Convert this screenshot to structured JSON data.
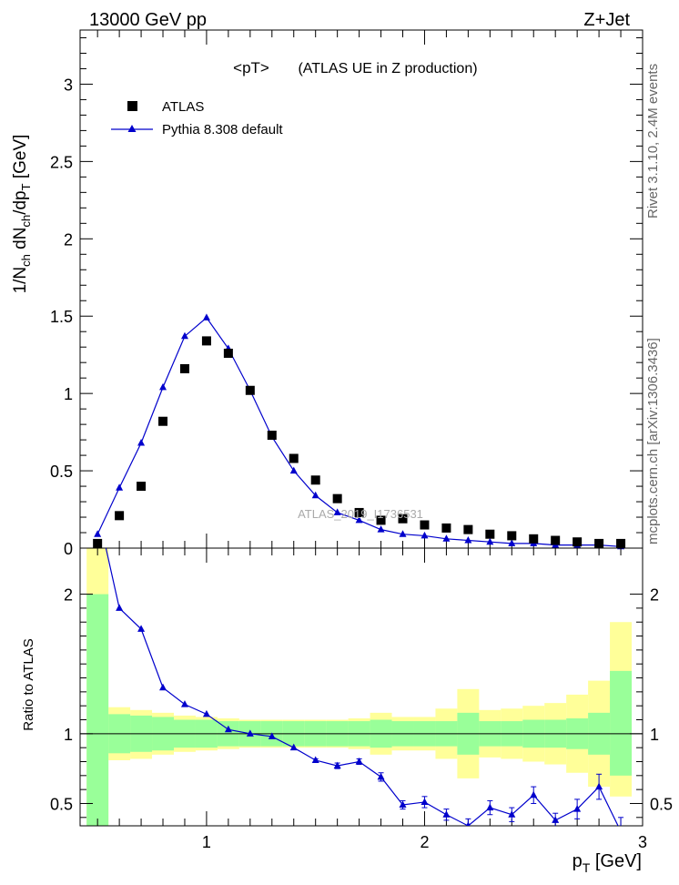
{
  "header": {
    "left": "13000 GeV pp",
    "right": "Z+Jet"
  },
  "side_labels": {
    "rivet": "Rivet 3.1.10, 2.4M events",
    "mcplots": "mcplots.cern.ch [arXiv:1306.3436]"
  },
  "watermark": "ATLAS_2019_I1736531",
  "colors": {
    "data": "#000000",
    "mc": "#0000cc",
    "band_inner": "#99ff99",
    "band_outer": "#ffff99"
  },
  "chart_data": [
    {
      "type": "scatter",
      "title": "<pT>",
      "subtitle": "(ATLAS UE in Z production)",
      "ylabel": "1/N_ch dN_ch/dp_T [GeV]",
      "xlim": [
        0.42,
        3.0
      ],
      "ylim": [
        0,
        3.35
      ],
      "yticks": [
        0,
        0.5,
        1,
        1.5,
        2,
        2.5,
        3
      ],
      "ytick_labels": [
        "0",
        "0.5",
        "1",
        "1.5",
        "2",
        "2.5",
        "3"
      ],
      "legend_position": "top-left",
      "series": [
        {
          "name": "ATLAS",
          "marker": "square",
          "x": [
            0.5,
            0.6,
            0.7,
            0.8,
            0.9,
            1.0,
            1.1,
            1.2,
            1.3,
            1.4,
            1.5,
            1.6,
            1.7,
            1.8,
            1.9,
            2.0,
            2.1,
            2.2,
            2.3,
            2.4,
            2.5,
            2.6,
            2.7,
            2.8,
            2.9
          ],
          "y": [
            0.03,
            0.21,
            0.4,
            0.82,
            1.16,
            1.34,
            1.26,
            1.02,
            0.73,
            0.58,
            0.44,
            0.32,
            0.23,
            0.18,
            0.19,
            0.15,
            0.13,
            0.12,
            0.09,
            0.08,
            0.06,
            0.05,
            0.04,
            0.03,
            0.03
          ]
        },
        {
          "name": "Pythia 8.308 default",
          "marker": "triangle",
          "x": [
            0.5,
            0.6,
            0.7,
            0.8,
            0.9,
            1.0,
            1.1,
            1.2,
            1.3,
            1.4,
            1.5,
            1.6,
            1.7,
            1.8,
            1.9,
            2.0,
            2.1,
            2.2,
            2.3,
            2.4,
            2.5,
            2.6,
            2.7,
            2.8,
            2.9
          ],
          "y": [
            0.09,
            0.39,
            0.68,
            1.04,
            1.37,
            1.49,
            1.29,
            1.02,
            0.72,
            0.5,
            0.34,
            0.23,
            0.18,
            0.12,
            0.09,
            0.08,
            0.06,
            0.05,
            0.04,
            0.03,
            0.03,
            0.02,
            0.02,
            0.02,
            0.01
          ]
        }
      ]
    },
    {
      "type": "line",
      "ylabel": "Ratio to ATLAS",
      "xlabel": "p_T [GeV]",
      "xlim": [
        0.42,
        3.0
      ],
      "ylim": [
        0.34,
        2.33
      ],
      "xticks": [
        1,
        2,
        3
      ],
      "xtick_labels": [
        "1",
        "2",
        "3"
      ],
      "yticks": [
        0.5,
        1,
        2
      ],
      "ytick_labels": [
        "0.5",
        "1",
        "2"
      ],
      "band_x_edges": [
        0.45,
        0.55,
        0.65,
        0.75,
        0.85,
        0.95,
        1.05,
        1.15,
        1.25,
        1.35,
        1.45,
        1.55,
        1.65,
        1.75,
        1.85,
        1.95,
        2.05,
        2.15,
        2.25,
        2.35,
        2.45,
        2.55,
        2.65,
        2.75,
        2.85,
        2.95
      ],
      "band_inner_lo": [
        0.2,
        0.86,
        0.87,
        0.88,
        0.9,
        0.9,
        0.91,
        0.91,
        0.91,
        0.91,
        0.91,
        0.91,
        0.91,
        0.9,
        0.91,
        0.91,
        0.91,
        0.85,
        0.91,
        0.91,
        0.9,
        0.9,
        0.89,
        0.85,
        0.7
      ],
      "band_inner_hi": [
        2.0,
        1.14,
        1.13,
        1.12,
        1.1,
        1.1,
        1.09,
        1.09,
        1.09,
        1.09,
        1.09,
        1.09,
        1.09,
        1.1,
        1.09,
        1.09,
        1.09,
        1.15,
        1.09,
        1.09,
        1.1,
        1.1,
        1.11,
        1.15,
        1.45
      ],
      "band_outer_lo": [
        0.1,
        0.81,
        0.82,
        0.85,
        0.87,
        0.88,
        0.89,
        0.9,
        0.9,
        0.9,
        0.9,
        0.9,
        0.89,
        0.85,
        0.88,
        0.88,
        0.82,
        0.68,
        0.83,
        0.82,
        0.8,
        0.78,
        0.72,
        0.62,
        0.55
      ],
      "band_outer_hi": [
        2.4,
        1.19,
        1.17,
        1.15,
        1.13,
        1.12,
        1.11,
        1.1,
        1.1,
        1.1,
        1.1,
        1.1,
        1.11,
        1.15,
        1.12,
        1.12,
        1.18,
        1.32,
        1.17,
        1.18,
        1.2,
        1.22,
        1.28,
        1.38,
        1.8
      ],
      "ratio_series": {
        "name": "Pythia 8.308 default",
        "x": [
          0.5,
          0.6,
          0.7,
          0.8,
          0.9,
          1.0,
          1.1,
          1.2,
          1.3,
          1.4,
          1.5,
          1.6,
          1.7,
          1.8,
          1.9,
          2.0,
          2.1,
          2.2,
          2.3,
          2.4,
          2.5,
          2.6,
          2.7,
          2.8,
          2.9
        ],
        "y": [
          2.6,
          1.9,
          1.75,
          1.33,
          1.21,
          1.14,
          1.03,
          1.0,
          0.98,
          0.9,
          0.81,
          0.77,
          0.8,
          0.69,
          0.49,
          0.51,
          0.42,
          0.34,
          0.47,
          0.42,
          0.56,
          0.38,
          0.46,
          0.62,
          0.3
        ],
        "err": [
          0.0,
          0.0,
          0.0,
          0.0,
          0.0,
          0.0,
          0.0,
          0.0,
          0.0,
          0.0,
          0.01,
          0.02,
          0.02,
          0.03,
          0.03,
          0.04,
          0.04,
          0.05,
          0.05,
          0.05,
          0.06,
          0.05,
          0.07,
          0.09,
          0.1
        ]
      }
    }
  ]
}
